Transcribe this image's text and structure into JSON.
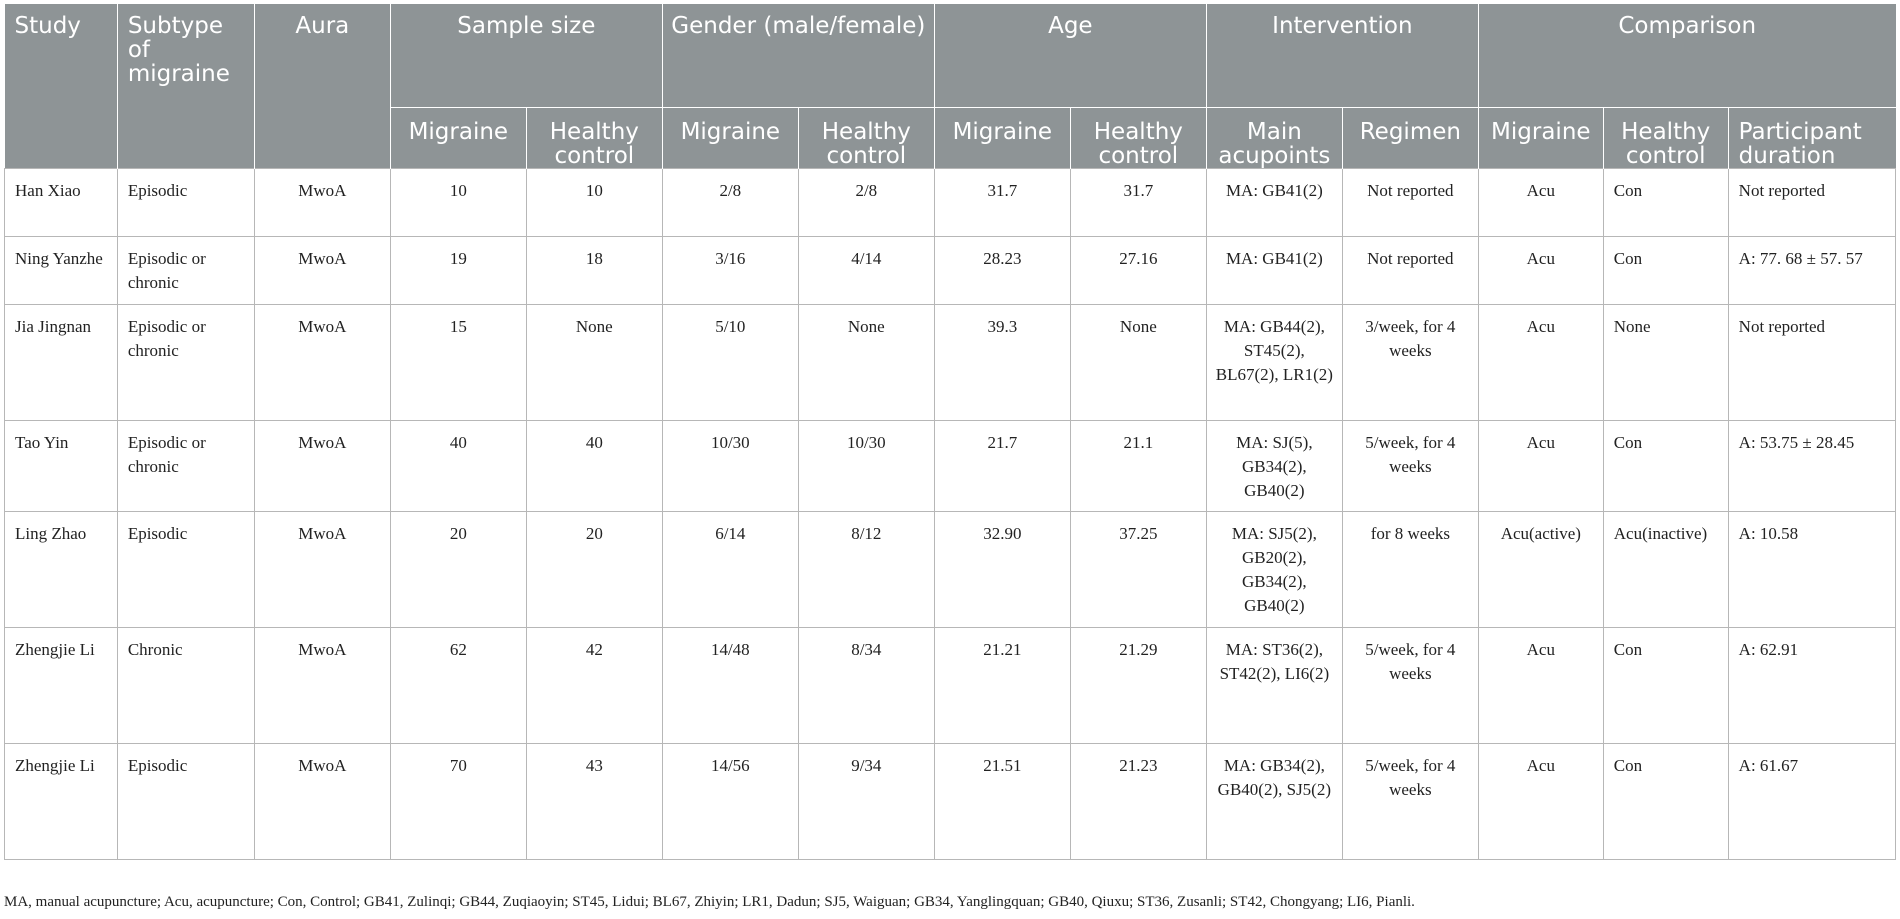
{
  "header": {
    "study": "Study",
    "subtype": "Subtype of migraine",
    "aura": "Aura",
    "sample_size": "Sample size",
    "gender": "Gender (male/female)",
    "age": "Age",
    "intervention": "Intervention",
    "comparison": "Comparison",
    "sub": {
      "ss_migraine": "Migraine",
      "ss_healthy": "Healthy control",
      "g_migraine": "Migraine",
      "g_healthy": "Healthy control",
      "a_migraine": "Migraine",
      "a_healthy": "Healthy control",
      "main_acupoints": "Main acupoints",
      "regimen": "Regimen",
      "c_migraine": "Migraine",
      "c_healthy": "Healthy control",
      "participant_duration": "Participant duration"
    }
  },
  "rows": [
    {
      "study": "Han Xiao",
      "subtype": "Episodic",
      "aura": "MwoA",
      "ss_m": "10",
      "ss_h": "10",
      "g_m": "2/8",
      "g_h": "2/8",
      "a_m": "31.7",
      "a_h": "31.7",
      "acupoints": "MA: GB41(2)",
      "regimen": "Not reported",
      "c_m": "Acu",
      "c_h": "Con",
      "duration": "Not reported"
    },
    {
      "study": "Ning Yanzhe",
      "subtype": "Episodic or chronic",
      "aura": "MwoA",
      "ss_m": "19",
      "ss_h": "18",
      "g_m": "3/16",
      "g_h": "4/14",
      "a_m": "28.23",
      "a_h": "27.16",
      "acupoints": "MA: GB41(2)",
      "regimen": "Not reported",
      "c_m": "Acu",
      "c_h": "Con",
      "duration": "A: 77. 68 ± 57. 57"
    },
    {
      "study": "Jia Jingnan",
      "subtype": "Episodic or chronic",
      "aura": "MwoA",
      "ss_m": "15",
      "ss_h": "None",
      "g_m": "5/10",
      "g_h": "None",
      "a_m": "39.3",
      "a_h": "None",
      "acupoints": "MA: GB44(2), ST45(2), BL67(2), LR1(2)",
      "regimen": "3/week, for 4 weeks",
      "c_m": "Acu",
      "c_h": "None",
      "duration": "Not reported"
    },
    {
      "study": "Tao Yin",
      "subtype": "Episodic or chronic",
      "aura": "MwoA",
      "ss_m": "40",
      "ss_h": "40",
      "g_m": "10/30",
      "g_h": "10/30",
      "a_m": "21.7",
      "a_h": "21.1",
      "acupoints": "MA: SJ(5), GB34(2), GB40(2)",
      "regimen": "5/week, for 4 weeks",
      "c_m": "Acu",
      "c_h": "Con",
      "duration": "A: 53.75 ± 28.45"
    },
    {
      "study": "Ling Zhao",
      "subtype": "Episodic",
      "aura": "MwoA",
      "ss_m": "20",
      "ss_h": "20",
      "g_m": "6/14",
      "g_h": "8/12",
      "a_m": "32.90",
      "a_h": "37.25",
      "acupoints": "MA: SJ5(2), GB20(2), GB34(2), GB40(2)",
      "regimen": "for 8 weeks",
      "c_m": "Acu(active)",
      "c_h": "Acu(inactive)",
      "duration": "A: 10.58"
    },
    {
      "study": "Zhengjie Li",
      "subtype": "Chronic",
      "aura": "MwoA",
      "ss_m": "62",
      "ss_h": "42",
      "g_m": "14/48",
      "g_h": "8/34",
      "a_m": "21.21",
      "a_h": "21.29",
      "acupoints": "MA: ST36(2), ST42(2), LI6(2)",
      "regimen": "5/week, for 4 weeks",
      "c_m": "Acu",
      "c_h": "Con",
      "duration": "A: 62.91"
    },
    {
      "study": "Zhengjie Li",
      "subtype": "Episodic",
      "aura": "MwoA",
      "ss_m": "70",
      "ss_h": "43",
      "g_m": "14/56",
      "g_h": "9/34",
      "a_m": "21.51",
      "a_h": "21.23",
      "acupoints": "MA: GB34(2), GB40(2), SJ5(2)",
      "regimen": "5/week, for 4 weeks",
      "c_m": "Acu",
      "c_h": "Con",
      "duration": "A: 61.67"
    }
  ],
  "footnote": "MA, manual acupuncture; Acu, acupuncture; Con, Control; GB41, Zulinqi; GB44, Zuqiaoyin; ST45, Lidui; BL67, Zhiyin; LR1, Dadun; SJ5, Waiguan; GB34, Yanglingquan; GB40, Qiuxu; ST36, Zusanli; ST42, Chongyang; LI6, Pianli."
}
